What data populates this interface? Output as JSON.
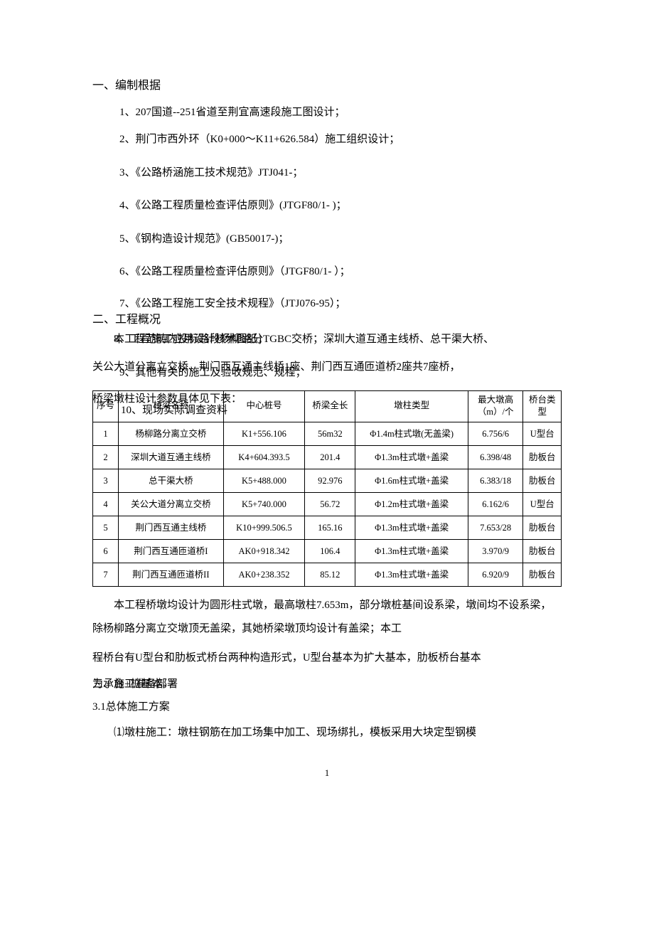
{
  "section1": {
    "title": "一、编制根据",
    "items": [
      "1、207国道--251省道至荆宜高速段施工图设计；",
      "2、荆门市西外环（K0+000～K11+626.584）施工组织设计；",
      "3、《公路桥涵施工技术规范》JTJ041-；",
      "4、《公路工程质量检查评估原则》(JTGF80/1- )；",
      "5、《钢构造设计规范》(GB50017-)；",
      "6、《公路工程质量检查评估原则》（JTGF80/1- ）；",
      "7、《公路工程施工安全技术规程》（JTJ076-95）；"
    ]
  },
  "section2": {
    "title": "二、工程概况",
    "mix_a": "8、工程施工应用设计核术图纸；",
    "mix_b": "本工程范畴内投标路段杨柳路分TGBC交桥；",
    "mix_tail": "深圳大道互通主线桥、总干渠大桥、",
    "line9a": "关公大道分离立交桥、荆门西互通主线桥1座、荆门西互通匝道桥2座共7座桥，",
    "line9b": "9、其他有关的施工及验收规范、规程；",
    "tbl_intro_a": "桥梁墩柱设计参数具体见下表：",
    "tbl_intro_b": "10、现场实际调查资料"
  },
  "table": {
    "headers": {
      "seq": "序号",
      "name": "桥梁名称",
      "stake": "中心桩号",
      "len": "桥梁全长",
      "type": "墩柱类型",
      "h": "最大墩高（m）/个",
      "abut": "桥台类型"
    },
    "rows": [
      {
        "seq": "1",
        "name": "杨柳路分离立交桥",
        "stake": "K1+556.106",
        "len": "56m32",
        "type": "Φ1.4m柱式墩(无盖梁)",
        "h": "6.756/6",
        "abut": "U型台"
      },
      {
        "seq": "2",
        "name": "深圳大道互通主线桥",
        "stake": "K4+604.393.5",
        "len": "201.4",
        "type": "Φ1.3m柱式墩+盖梁",
        "h": "6.398/48",
        "abut": "肋板台"
      },
      {
        "seq": "3",
        "name": "总干渠大桥",
        "stake": "K5+488.000",
        "len": "92.976",
        "type": "Φ1.6m柱式墩+盖梁",
        "h": "6.383/18",
        "abut": "肋板台"
      },
      {
        "seq": "4",
        "name": "关公大道分离立交桥",
        "stake": "K5+740.000",
        "len": "56.72",
        "type": "Φ1.2m柱式墩+盖梁",
        "h": "6.162/6",
        "abut": "U型台"
      },
      {
        "seq": "5",
        "name": "荆门西互通主线桥",
        "stake": "K10+999.506.5",
        "len": "165.16",
        "type": "Φ1.3m柱式墩+盖梁",
        "h": "7.653/28",
        "abut": "肋板台"
      },
      {
        "seq": "6",
        "name": "荆门西互通匝道桥I",
        "stake": "AK0+918.342",
        "len": "106.4",
        "type": "Φ1.3m柱式墩+盖梁",
        "h": "3.970/9",
        "abut": "肋板台"
      },
      {
        "seq": "7",
        "name": "荆门西互通匝道桥II",
        "stake": "AK0+238.352",
        "len": "85.12",
        "type": "Φ1.3m柱式墩+盖梁",
        "h": "6.920/9",
        "abut": "肋板台"
      }
    ]
  },
  "para2": "本工程桥墩均设计为圆形柱式墩，最高墩柱7.653m，部分墩桩基间设系梁，墩间均不设系梁，除杨柳路分离立交墩顶无盖梁，其她桥梁墩顶均设计有盖梁；本工",
  "para2b": "程桥台有U型台和肋板式桥台两种构造形式，U型台基本为扩大基本，肋板桥台基本",
  "overlap3_a": "为承台+桩基本。",
  "overlap3_b": "三、施工准备部署",
  "section3": {
    "sub": "3.1总体施工方案",
    "p1": "⑴墩柱施工：墩柱钢筋在加工场集中加工、现场绑扎，模板采用大块定型钢模"
  },
  "page": "1"
}
